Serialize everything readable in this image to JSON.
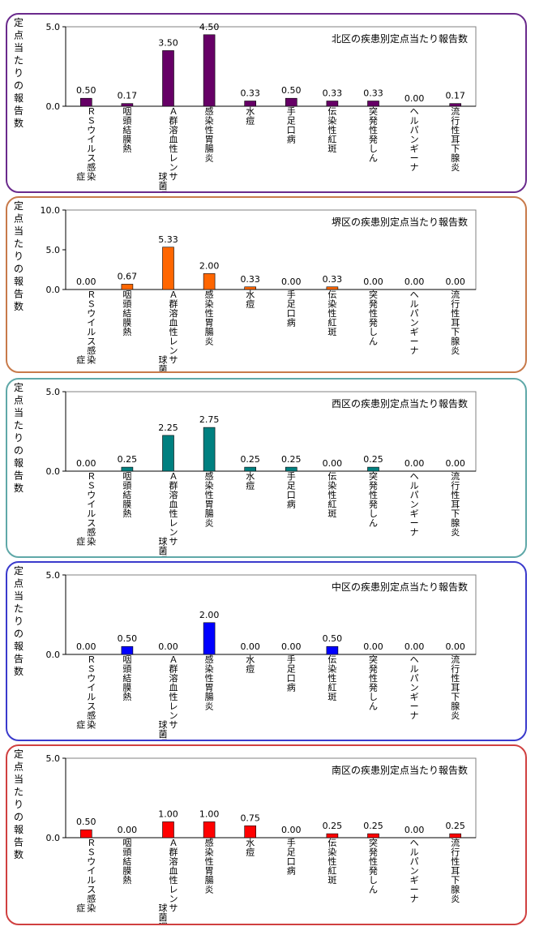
{
  "chart_data": [
    {
      "type": "bar",
      "title": "北区の疾患別定点当たり報告数",
      "ylabel": "定点当たりの報告数",
      "ylim": [
        0,
        5.0
      ],
      "yticks": [
        "0.0",
        "5.0"
      ],
      "categories": [
        "RSウイルス感染症",
        "咽頭結膜熱",
        "A群溶血性レンサ球菌咽頭炎",
        "感染性胃腸炎",
        "水痘",
        "手足口病",
        "伝染性紅斑",
        "突発性発しん",
        "ヘルパンギーナ",
        "流行性耳下腺炎"
      ],
      "values": [
        0.5,
        0.17,
        3.5,
        4.5,
        0.33,
        0.5,
        0.33,
        0.33,
        0.0,
        0.17
      ],
      "data_labels": [
        "0.50",
        "0.17",
        "3.50",
        "4.50",
        "0.33",
        "0.50",
        "0.33",
        "0.33",
        "0.00",
        "0.17"
      ],
      "bar_color": "#660066",
      "border_color": "#6a2a8c",
      "grid": false
    },
    {
      "type": "bar",
      "title": "堺区の疾患別定点当たり報告数",
      "ylabel": "定点当たりの報告数",
      "ylim": [
        0,
        10.0
      ],
      "yticks": [
        "0.0",
        "5.0",
        "10.0"
      ],
      "categories": [
        "RSウイルス感染症",
        "咽頭結膜熱",
        "A群溶血性レンサ球菌咽頭炎",
        "感染性胃腸炎",
        "水痘",
        "手足口病",
        "伝染性紅斑",
        "突発性発しん",
        "ヘルパンギーナ",
        "流行性耳下腺炎"
      ],
      "values": [
        0.0,
        0.67,
        5.33,
        2.0,
        0.33,
        0.0,
        0.33,
        0.0,
        0.0,
        0.0
      ],
      "data_labels": [
        "0.00",
        "0.67",
        "5.33",
        "2.00",
        "0.33",
        "0.00",
        "0.33",
        "0.00",
        "0.00",
        "0.00"
      ],
      "bar_color": "#ff6600",
      "border_color": "#c87a4a",
      "grid": false
    },
    {
      "type": "bar",
      "title": "西区の疾患別定点当たり報告数",
      "ylabel": "定点当たりの報告数",
      "ylim": [
        0,
        5.0
      ],
      "yticks": [
        "0.0",
        "5.0"
      ],
      "categories": [
        "RSウイルス感染症",
        "咽頭結膜熱",
        "A群溶血性レンサ球菌咽頭炎",
        "感染性胃腸炎",
        "水痘",
        "手足口病",
        "伝染性紅斑",
        "突発性発しん",
        "ヘルパンギーナ",
        "流行性耳下腺炎"
      ],
      "values": [
        0.0,
        0.25,
        2.25,
        2.75,
        0.25,
        0.25,
        0.0,
        0.25,
        0.0,
        0.0
      ],
      "data_labels": [
        "0.00",
        "0.25",
        "2.25",
        "2.75",
        "0.25",
        "0.25",
        "0.00",
        "0.25",
        "0.00",
        "0.00"
      ],
      "bar_color": "#008080",
      "border_color": "#5fa8a8",
      "grid": false
    },
    {
      "type": "bar",
      "title": "中区の疾患別定点当たり報告数",
      "ylabel": "定点当たりの報告数",
      "ylim": [
        0,
        5.0
      ],
      "yticks": [
        "0.0",
        "5.0"
      ],
      "categories": [
        "RSウイルス感染症",
        "咽頭結膜熱",
        "A群溶血性レンサ球菌咽頭炎",
        "感染性胃腸炎",
        "水痘",
        "手足口病",
        "伝染性紅斑",
        "突発性発しん",
        "ヘルパンギーナ",
        "流行性耳下腺炎"
      ],
      "values": [
        0.0,
        0.5,
        0.0,
        2.0,
        0.0,
        0.0,
        0.5,
        0.0,
        0.0,
        0.0
      ],
      "data_labels": [
        "0.00",
        "0.50",
        "0.00",
        "2.00",
        "0.00",
        "0.00",
        "0.50",
        "0.00",
        "0.00",
        "0.00"
      ],
      "bar_color": "#0000ff",
      "border_color": "#3a3acc",
      "grid": false
    },
    {
      "type": "bar",
      "title": "南区の疾患別定点当たり報告数",
      "ylabel": "定点当たりの報告数",
      "ylim": [
        0,
        5.0
      ],
      "yticks": [
        "0.0",
        "5.0"
      ],
      "categories": [
        "RSウイルス感染症",
        "咽頭結膜熱",
        "A群溶血性レンサ球菌咽頭炎",
        "感染性胃腸炎",
        "水痘",
        "手足口病",
        "伝染性紅斑",
        "突発性発しん",
        "ヘルパンギーナ",
        "流行性耳下腺炎"
      ],
      "values": [
        0.5,
        0.0,
        1.0,
        1.0,
        0.75,
        0.0,
        0.25,
        0.25,
        0.0,
        0.25
      ],
      "data_labels": [
        "0.50",
        "0.00",
        "1.00",
        "1.00",
        "0.75",
        "0.00",
        "0.25",
        "0.25",
        "0.00",
        "0.25"
      ],
      "bar_color": "#ff0000",
      "border_color": "#d04040",
      "grid": false
    }
  ],
  "category_label_columns": [
    [
      "ＲＳウイルス感染",
      "症"
    ],
    [
      "咽頭結膜熱"
    ],
    [
      "Ａ群溶血性レンサ",
      "球菌咽頭炎"
    ],
    [
      "感染性胃腸炎"
    ],
    [
      "水痘"
    ],
    [
      "手足口病"
    ],
    [
      "伝染性紅斑"
    ],
    [
      "突発性発しん"
    ],
    [
      "ヘルパンギーナ"
    ],
    [
      "流行性耳下腺炎"
    ]
  ]
}
